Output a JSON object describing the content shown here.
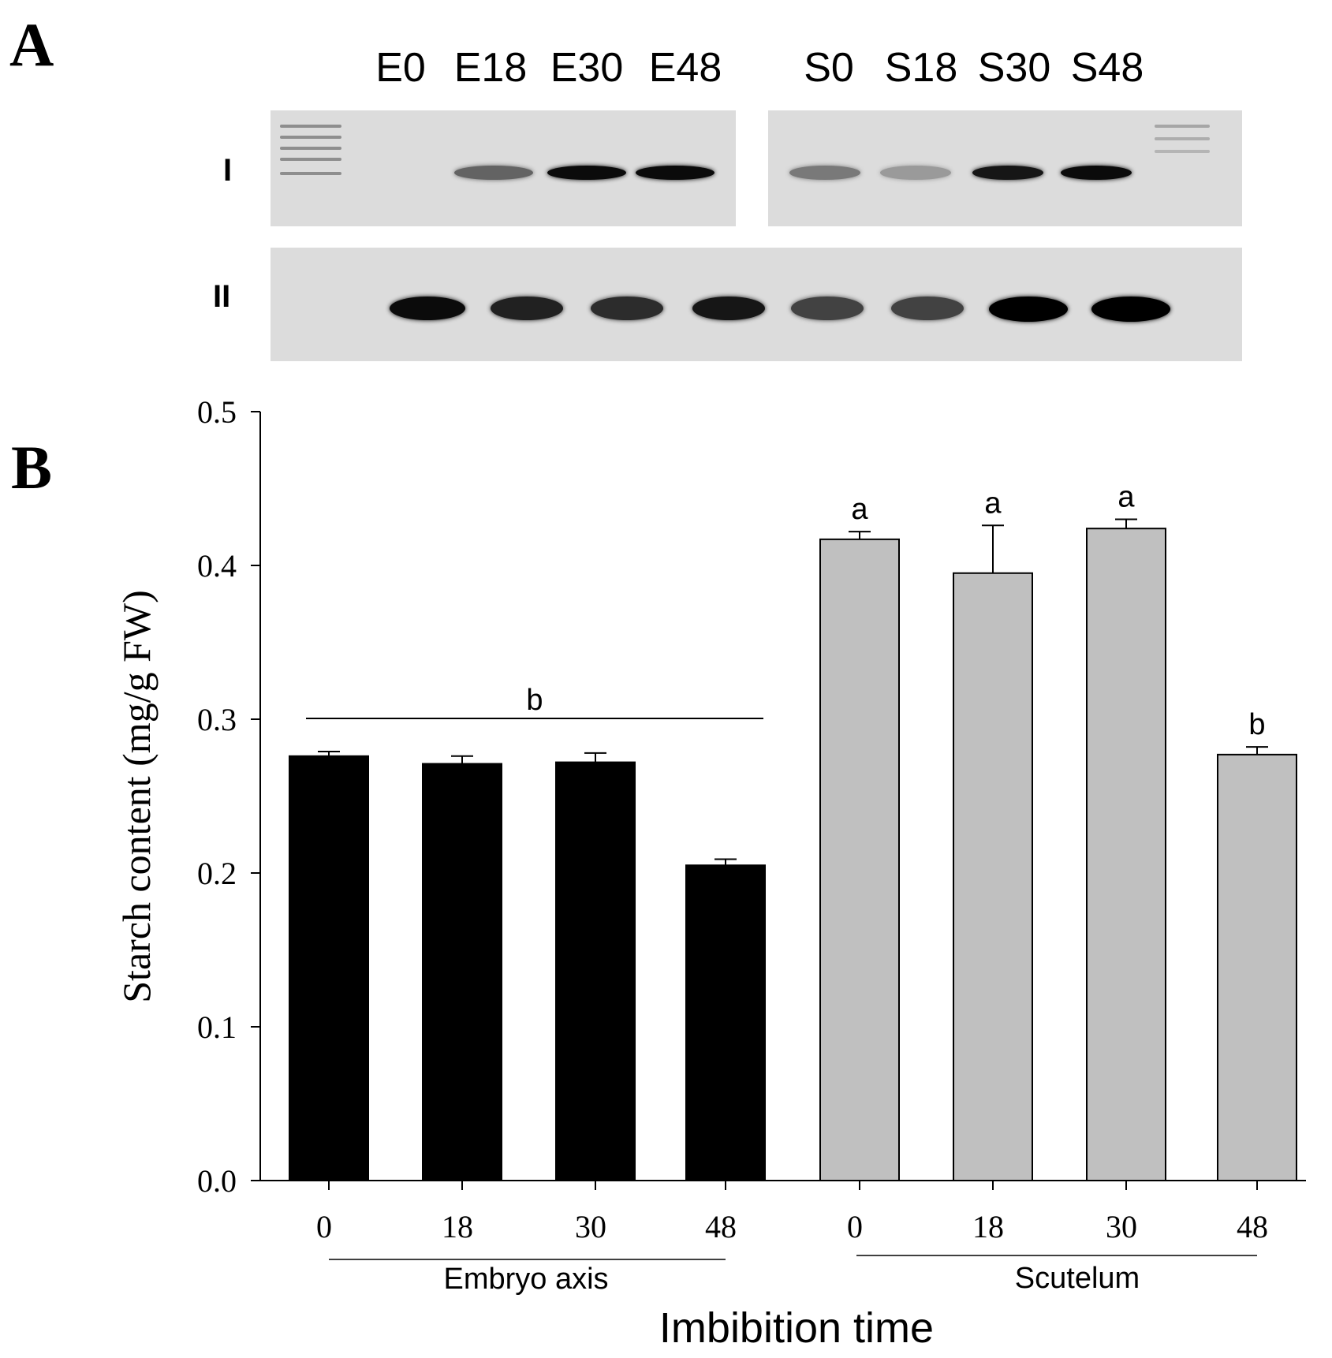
{
  "panel_a": {
    "letter": "A",
    "lanes_embryo": [
      "E0",
      "E18",
      "E30",
      "E48"
    ],
    "lanes_scutelum": [
      "S0",
      "S18",
      "S30",
      "S48"
    ],
    "row_labels": [
      "I",
      "II"
    ],
    "band_intensity_row1": [
      0.0,
      0.55,
      0.95,
      0.95,
      0.45,
      0.3,
      0.9,
      0.95
    ],
    "band_intensity_row2": [
      0.95,
      0.85,
      0.8,
      0.9,
      0.7,
      0.7,
      1.0,
      1.0
    ]
  },
  "panel_b": {
    "letter": "B"
  },
  "chart_data": {
    "type": "bar",
    "title": "",
    "xlabel": "Imbibition time",
    "ylabel": "Starch content (mg/g FW)",
    "ylim": [
      0.0,
      0.5
    ],
    "yticks": [
      "0.0",
      "0.1",
      "0.2",
      "0.3",
      "0.4",
      "0.5"
    ],
    "groups": [
      {
        "name": "Embryo axis",
        "color": "#000000",
        "categories": [
          "0",
          "18",
          "30",
          "48"
        ],
        "values": [
          0.276,
          0.271,
          0.272,
          0.205
        ],
        "errors": [
          0.003,
          0.005,
          0.006,
          0.004
        ]
      },
      {
        "name": "Scutelum",
        "color": "#c0c0c0",
        "categories": [
          "0",
          "18",
          "30",
          "48"
        ],
        "values": [
          0.417,
          0.395,
          0.424,
          0.277
        ],
        "errors": [
          0.005,
          0.031,
          0.006,
          0.005
        ],
        "letters": [
          "a",
          "a",
          "a",
          "b"
        ]
      }
    ],
    "group_annotation": {
      "label": "b"
    },
    "grid": false
  }
}
